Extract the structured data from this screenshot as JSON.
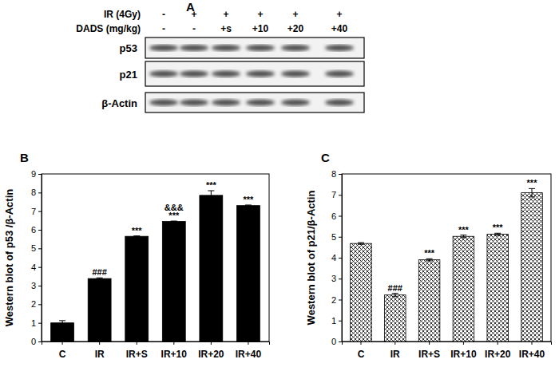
{
  "blot": {
    "panel_label": "A",
    "conditions": [
      {
        "label": "IR (4Gy)",
        "signs": [
          "-",
          "+",
          "+",
          "+",
          "+",
          "+"
        ]
      },
      {
        "label": "DADS (mg/kg)",
        "signs": [
          "-",
          "-",
          "+s",
          "+10",
          "+20",
          "+40"
        ]
      }
    ],
    "rows": [
      "p53",
      "p21",
      "β-Actin"
    ]
  },
  "chart_data": [
    {
      "type": "bar",
      "title": "B",
      "y_label": "Western blot of p53 /β-Actin",
      "categories": [
        "C",
        "IR",
        "IR+S",
        "IR+10",
        "IR+20",
        "IR+40"
      ],
      "values": [
        1.0,
        3.38,
        5.65,
        6.45,
        7.85,
        7.3
      ],
      "errors": [
        0.12,
        0.04,
        0.02,
        0.02,
        0.25,
        0.03
      ],
      "annotations": [
        null,
        [
          "###"
        ],
        [
          "***"
        ],
        [
          "&&&",
          "***"
        ],
        [
          "***"
        ],
        [
          "***"
        ]
      ],
      "color": "#000000",
      "ylim": [
        0,
        9
      ],
      "yticks": [
        0,
        1,
        2,
        3,
        4,
        5,
        6,
        7,
        8,
        9
      ]
    },
    {
      "type": "bar",
      "title": "C",
      "y_label": "Western blot of p21/β-Actin",
      "categories": [
        "C",
        "IR",
        "IR+S",
        "IR+10",
        "IR+20",
        "IR+40"
      ],
      "values": [
        4.68,
        2.22,
        3.9,
        5.02,
        5.12,
        7.1
      ],
      "errors": [
        0.04,
        0.08,
        0.05,
        0.06,
        0.05,
        0.2
      ],
      "annotations": [
        null,
        [
          "###"
        ],
        [
          "***"
        ],
        [
          "***"
        ],
        [
          "***"
        ],
        [
          "***"
        ]
      ],
      "color": "#000000",
      "ylim": [
        0,
        8
      ],
      "yticks": [
        0,
        1,
        2,
        3,
        4,
        5,
        6,
        7,
        8
      ]
    }
  ]
}
